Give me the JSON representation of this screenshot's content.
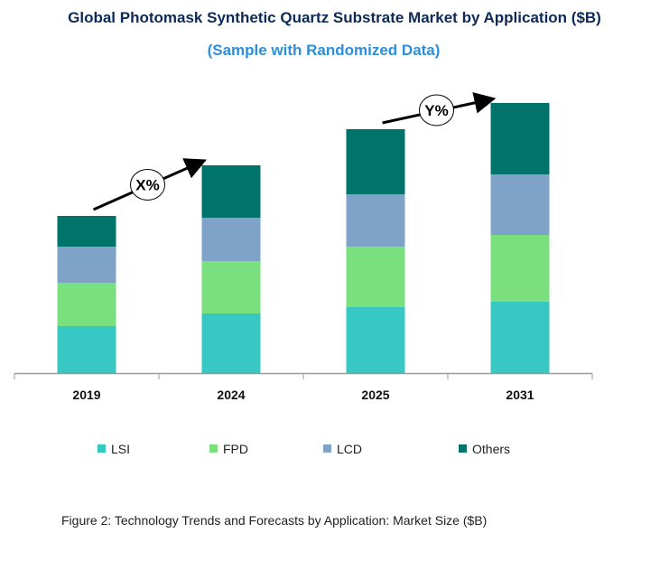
{
  "chart_data": {
    "type": "bar",
    "stacked": true,
    "title": "Global Photomask Synthetic Quartz Substrate Market by Application ($B)",
    "subtitle": "(Sample with Randomized Data)",
    "categories": [
      "2019",
      "2024",
      "2025",
      "2031"
    ],
    "series": [
      {
        "name": "LSI",
        "color": "#38c8c4",
        "values": [
          5.2,
          6.6,
          7.3,
          7.9
        ]
      },
      {
        "name": "FPD",
        "color": "#7ae07e",
        "values": [
          4.8,
          5.8,
          6.7,
          7.4
        ]
      },
      {
        "name": "LCD",
        "color": "#7fa3c8",
        "values": [
          4.0,
          4.8,
          5.8,
          6.7
        ]
      },
      {
        "name": "Others",
        "color": "#00736b",
        "values": [
          3.4,
          5.8,
          7.2,
          7.9
        ]
      }
    ],
    "annotations": [
      {
        "label": "X%",
        "from": "2019",
        "to": "2024"
      },
      {
        "label": "Y%",
        "from": "2025",
        "to": "2031"
      }
    ],
    "yaxis_visible": false,
    "grid": false,
    "legend_placement": "bottom"
  },
  "caption": "Figure 2: Technology  Trends  and Forecasts by Application: Market Size ($B)"
}
